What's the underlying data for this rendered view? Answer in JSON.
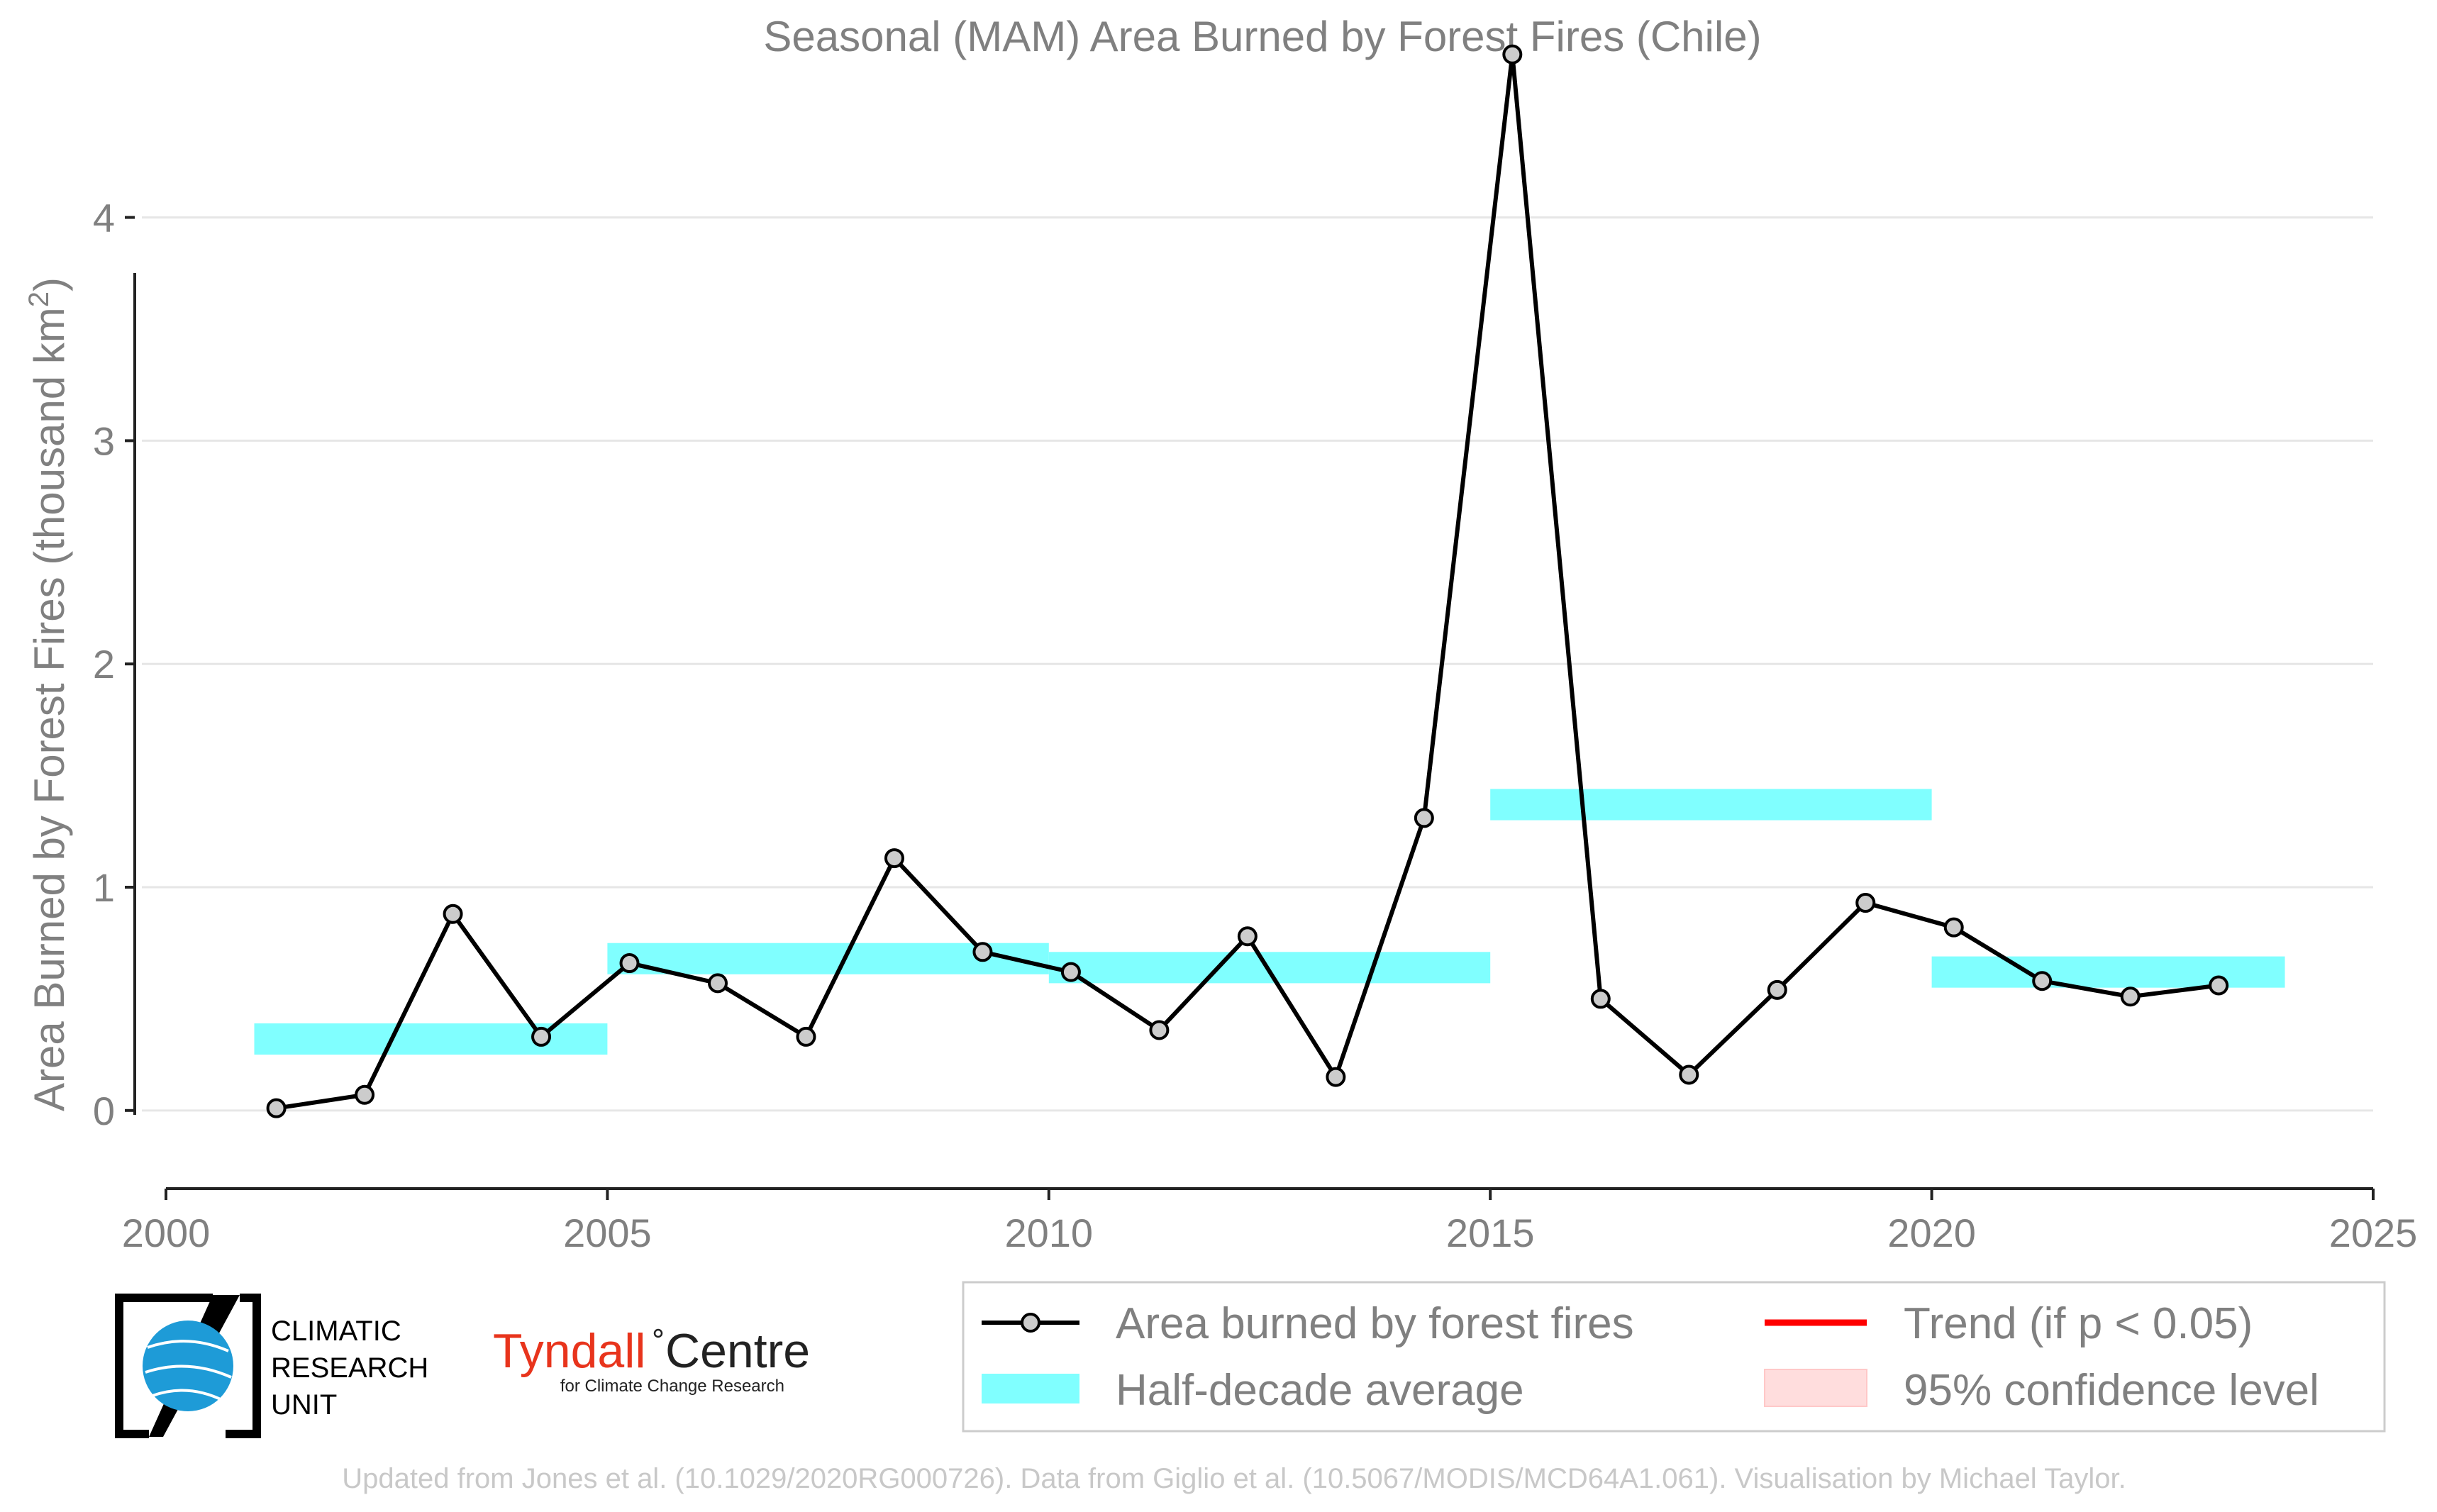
{
  "chart_data": {
    "type": "line",
    "title": "Seasonal (MAM) Area Burned by Forest Fires (Chile)",
    "ylabel": "Area Burned by Forest Fires (thousand km²)",
    "xlabel": "",
    "xlim": [
      2000,
      2025
    ],
    "ylim": [
      -0.35,
      4.85
    ],
    "x_ticks": [
      2000,
      2005,
      2010,
      2015,
      2020,
      2025
    ],
    "y_ticks": [
      0,
      1,
      2,
      3,
      4
    ],
    "grid": "horizontal",
    "legend_position": "bottom-right",
    "series": [
      {
        "name": "Area burned by forest fires",
        "color": "#000000",
        "marker_fill": "#cccccc",
        "x": [
          2001.25,
          2002.25,
          2003.25,
          2004.25,
          2005.25,
          2006.25,
          2007.25,
          2008.25,
          2009.25,
          2010.25,
          2011.25,
          2012.25,
          2013.25,
          2014.25,
          2015.25,
          2016.25,
          2017.25,
          2018.25,
          2019.25,
          2020.25,
          2021.25,
          2022.25,
          2023.25
        ],
        "y": [
          0.01,
          0.07,
          0.88,
          0.33,
          0.66,
          0.57,
          0.33,
          1.13,
          0.71,
          0.62,
          0.36,
          0.78,
          0.15,
          1.31,
          4.73,
          0.5,
          0.16,
          0.54,
          0.93,
          0.82,
          0.58,
          0.51,
          0.56
        ]
      }
    ],
    "half_decade_averages": {
      "name": "Half-decade average",
      "color": "#80ffff",
      "segments": [
        {
          "x0": 2001,
          "x1": 2005,
          "y": 0.32
        },
        {
          "x0": 2005,
          "x1": 2010,
          "y": 0.68
        },
        {
          "x0": 2010,
          "x1": 2015,
          "y": 0.64
        },
        {
          "x0": 2015,
          "x1": 2020,
          "y": 1.37
        },
        {
          "x0": 2020,
          "x1": 2024,
          "y": 0.62
        }
      ]
    },
    "legend": [
      {
        "label": "Area burned by forest fires",
        "kind": "line-marker",
        "color": "#000000"
      },
      {
        "label": "Trend (if p < 0.05)",
        "kind": "line",
        "color": "#ff0000"
      },
      {
        "label": "Half-decade average",
        "kind": "band",
        "color": "#80ffff"
      },
      {
        "label": "95% confidence level",
        "kind": "band",
        "color": "#ffdddd"
      }
    ]
  },
  "logos": {
    "cru_lines": [
      "CLIMATIC",
      "RESEARCH",
      "UNIT"
    ],
    "tyndall_name": "Tyndall",
    "tyndall_centre": "Centre",
    "tyndall_sub": "for Climate Change Research"
  },
  "footer": "Updated from Jones et al. (10.1029/2020RG000726). Data from Giglio et al. (10.5067/MODIS/MCD64A1.061). Visualisation by Michael Taylor."
}
